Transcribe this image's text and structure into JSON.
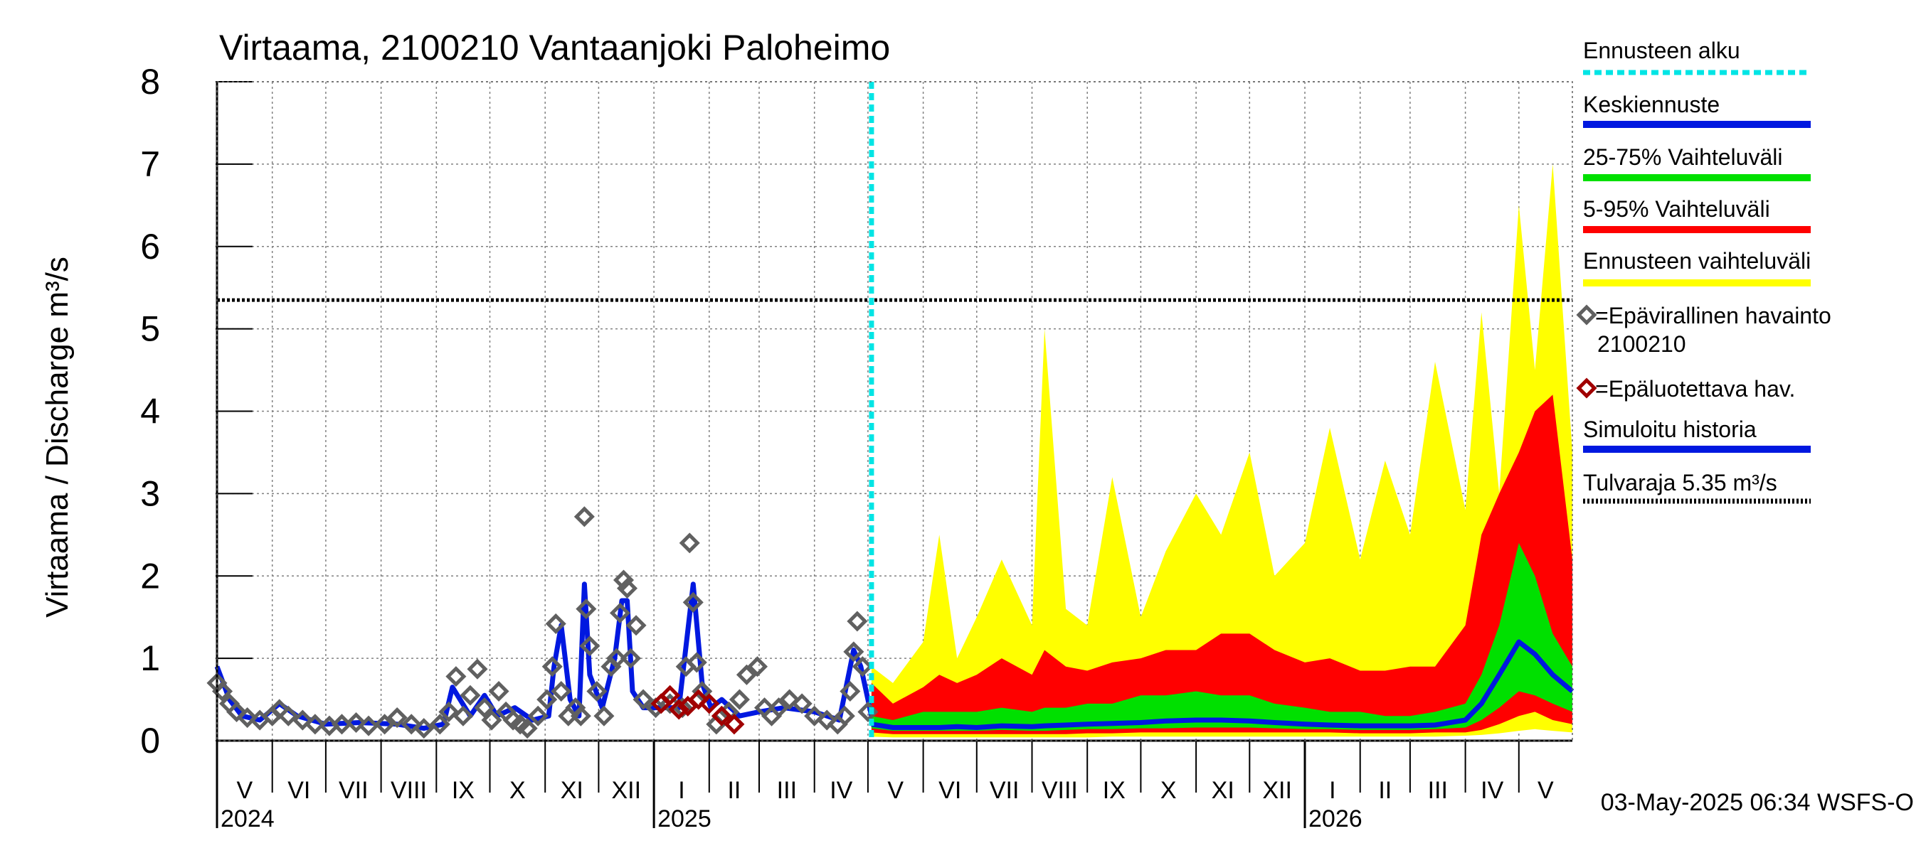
{
  "chart_data": {
    "type": "area",
    "title": "Virtaama, 2100210 Vantaanjoki Paloheimo",
    "ylabel": "Virtaama / Discharge     m³/s",
    "ylim": [
      0,
      8
    ],
    "yticks": [
      "0",
      "1",
      "2",
      "3",
      "4",
      "5",
      "6",
      "7",
      "8"
    ],
    "x_start": "2024-05-01",
    "x_end": "2026-05-31",
    "forecast_start": "2025-05-03",
    "month_labels": [
      {
        "label": "V",
        "month": "2024-05"
      },
      {
        "label": "VI",
        "month": "2024-06"
      },
      {
        "label": "VII",
        "month": "2024-07"
      },
      {
        "label": "VIII",
        "month": "2024-08"
      },
      {
        "label": "IX",
        "month": "2024-09"
      },
      {
        "label": "X",
        "month": "2024-10"
      },
      {
        "label": "XI",
        "month": "2024-11"
      },
      {
        "label": "XII",
        "month": "2024-12"
      },
      {
        "label": "I",
        "month": "2025-01"
      },
      {
        "label": "II",
        "month": "2025-02"
      },
      {
        "label": "III",
        "month": "2025-03"
      },
      {
        "label": "IV",
        "month": "2025-04"
      },
      {
        "label": "V",
        "month": "2025-05"
      },
      {
        "label": "VI",
        "month": "2025-06"
      },
      {
        "label": "VII",
        "month": "2025-07"
      },
      {
        "label": "VIII",
        "month": "2025-08"
      },
      {
        "label": "IX",
        "month": "2025-09"
      },
      {
        "label": "X",
        "month": "2025-10"
      },
      {
        "label": "XI",
        "month": "2025-11"
      },
      {
        "label": "XII",
        "month": "2025-12"
      },
      {
        "label": "I",
        "month": "2026-01"
      },
      {
        "label": "II",
        "month": "2026-02"
      },
      {
        "label": "III",
        "month": "2026-03"
      },
      {
        "label": "IV",
        "month": "2026-04"
      },
      {
        "label": "V",
        "month": "2026-05"
      }
    ],
    "year_labels": [
      {
        "label": "2024",
        "month": "2024-05"
      },
      {
        "label": "2025",
        "month": "2025-01"
      },
      {
        "label": "2026",
        "month": "2026-01"
      }
    ],
    "flood_limit": 5.35,
    "footer": "03-May-2025 06:34 WSFS-O",
    "legend": [
      {
        "label": "Ennusteen alku",
        "style": "dotted",
        "color": "#00e5e5"
      },
      {
        "label": "Keskiennuste",
        "style": "line",
        "color": "#0018e0"
      },
      {
        "label": "25-75% Vaihteluväli",
        "style": "line",
        "color": "#00e000"
      },
      {
        "label": "5-95% Vaihteluväli",
        "style": "line",
        "color": "#ff0000"
      },
      {
        "label": "Ennusteen vaihteluväli",
        "style": "line",
        "color": "#ffff00"
      },
      {
        "label": "=Epävirallinen havainto",
        "sub": "2100210",
        "style": "marker",
        "color": "#606060"
      },
      {
        "label": "=Epäluotettava hav.",
        "style": "marker",
        "color": "#a00000"
      },
      {
        "label": "Simuloitu historia",
        "style": "line",
        "color": "#0018e0"
      },
      {
        "label": "Tulvaraja 5.35 m³/s",
        "style": "dotted",
        "color": "#000000"
      }
    ],
    "colors": {
      "forecast_range": "#ffff00",
      "p5_95": "#ff0000",
      "p25_75": "#00e000",
      "median": "#0018e0",
      "simulated": "#0018e0",
      "observed": "#606060",
      "unreliable": "#a00000",
      "forecast_start": "#00e5e5",
      "flood_limit": "#000000"
    },
    "series": [
      {
        "name": "Simuloitu historia",
        "x": [
          "2024-05-01",
          "2024-05-08",
          "2024-05-15",
          "2024-05-25",
          "2024-06-05",
          "2024-06-15",
          "2024-07-01",
          "2024-07-20",
          "2024-08-10",
          "2024-08-25",
          "2024-09-05",
          "2024-09-10",
          "2024-09-20",
          "2024-09-28",
          "2024-10-05",
          "2024-10-15",
          "2024-10-25",
          "2024-11-03",
          "2024-11-06",
          "2024-11-10",
          "2024-11-15",
          "2024-11-20",
          "2024-11-23",
          "2024-11-26",
          "2024-12-03",
          "2024-12-10",
          "2024-12-14",
          "2024-12-17",
          "2024-12-20",
          "2024-12-26",
          "2025-01-05",
          "2025-01-15",
          "2025-01-23",
          "2025-01-28",
          "2025-02-02",
          "2025-02-08",
          "2025-02-18",
          "2025-03-01",
          "2025-03-15",
          "2025-04-01",
          "2025-04-15",
          "2025-04-23",
          "2025-04-27",
          "2025-05-03"
        ],
        "y": [
          0.9,
          0.5,
          0.3,
          0.25,
          0.45,
          0.3,
          0.2,
          0.22,
          0.2,
          0.15,
          0.2,
          0.65,
          0.3,
          0.55,
          0.3,
          0.4,
          0.25,
          0.3,
          0.9,
          1.4,
          0.5,
          0.3,
          1.9,
          0.8,
          0.4,
          1.0,
          1.7,
          1.7,
          0.6,
          0.4,
          0.4,
          0.4,
          1.9,
          0.7,
          0.4,
          0.5,
          0.3,
          0.35,
          0.4,
          0.35,
          0.25,
          1.1,
          0.9,
          0.3
        ]
      },
      {
        "name": "Epävirallinen havainto",
        "x": [
          "2024-05-01",
          "2024-05-04",
          "2024-05-08",
          "2024-05-12",
          "2024-05-18",
          "2024-05-25",
          "2024-06-01",
          "2024-06-05",
          "2024-06-10",
          "2024-06-18",
          "2024-06-25",
          "2024-07-03",
          "2024-07-10",
          "2024-07-18",
          "2024-07-25",
          "2024-08-03",
          "2024-08-10",
          "2024-08-18",
          "2024-08-25",
          "2024-09-03",
          "2024-09-08",
          "2024-09-12",
          "2024-09-16",
          "2024-09-20",
          "2024-09-24",
          "2024-09-28",
          "2024-10-02",
          "2024-10-06",
          "2024-10-10",
          "2024-10-14",
          "2024-10-18",
          "2024-10-22",
          "2024-10-28",
          "2024-11-02",
          "2024-11-05",
          "2024-11-07",
          "2024-11-10",
          "2024-11-14",
          "2024-11-18",
          "2024-11-21",
          "2024-11-23",
          "2024-11-24",
          "2024-11-26",
          "2024-11-30",
          "2024-12-04",
          "2024-12-08",
          "2024-12-11",
          "2024-12-13",
          "2024-12-15",
          "2024-12-17",
          "2024-12-19",
          "2024-12-22",
          "2024-12-26",
          "2025-01-02",
          "2025-01-10",
          "2025-01-17",
          "2025-01-19",
          "2025-01-21",
          "2025-01-23",
          "2025-01-25",
          "2025-01-28",
          "2025-02-05",
          "2025-02-12",
          "2025-02-18",
          "2025-02-22",
          "2025-02-28",
          "2025-03-04",
          "2025-03-08",
          "2025-03-12",
          "2025-03-18",
          "2025-03-25",
          "2025-04-01",
          "2025-04-08",
          "2025-04-14",
          "2025-04-18",
          "2025-04-21",
          "2025-04-23",
          "2025-04-25",
          "2025-04-28",
          "2025-05-01"
        ],
        "y": [
          0.7,
          0.6,
          0.45,
          0.35,
          0.28,
          0.25,
          0.3,
          0.38,
          0.3,
          0.25,
          0.2,
          0.18,
          0.2,
          0.22,
          0.18,
          0.2,
          0.28,
          0.2,
          0.15,
          0.2,
          0.35,
          0.78,
          0.3,
          0.55,
          0.87,
          0.4,
          0.25,
          0.6,
          0.35,
          0.25,
          0.2,
          0.15,
          0.3,
          0.5,
          0.9,
          1.42,
          0.6,
          0.3,
          0.4,
          0.3,
          2.72,
          1.6,
          1.15,
          0.6,
          0.3,
          0.9,
          1.0,
          1.55,
          1.95,
          1.85,
          1.0,
          1.4,
          0.5,
          0.4,
          0.45,
          0.4,
          0.9,
          2.4,
          1.68,
          0.95,
          0.6,
          0.2,
          0.35,
          0.5,
          0.8,
          0.9,
          0.4,
          0.3,
          0.4,
          0.5,
          0.45,
          0.3,
          0.25,
          0.2,
          0.3,
          0.6,
          1.08,
          1.45,
          0.9,
          0.35
        ]
      },
      {
        "name": "Epäluotettava hav.",
        "x": [
          "2025-01-05",
          "2025-01-10",
          "2025-01-15",
          "2025-01-20",
          "2025-01-26",
          "2025-02-01",
          "2025-02-08",
          "2025-02-15"
        ],
        "y": [
          0.45,
          0.55,
          0.38,
          0.42,
          0.5,
          0.45,
          0.3,
          0.2
        ]
      }
    ],
    "forecast": {
      "x": [
        "2025-05-03",
        "2025-05-15",
        "2025-06-01",
        "2025-06-10",
        "2025-06-20",
        "2025-07-01",
        "2025-07-15",
        "2025-08-01",
        "2025-08-08",
        "2025-08-20",
        "2025-09-01",
        "2025-09-15",
        "2025-10-01",
        "2025-10-15",
        "2025-11-01",
        "2025-11-15",
        "2025-12-01",
        "2025-12-15",
        "2026-01-01",
        "2026-01-15",
        "2026-02-01",
        "2026-02-15",
        "2026-03-01",
        "2026-03-15",
        "2026-04-01",
        "2026-04-10",
        "2026-04-20",
        "2026-05-01",
        "2026-05-10",
        "2026-05-20",
        "2026-05-31"
      ],
      "max": [
        0.9,
        0.7,
        1.2,
        2.5,
        1.0,
        1.5,
        2.2,
        1.4,
        5.0,
        1.6,
        1.4,
        3.2,
        1.5,
        2.3,
        3.0,
        2.5,
        3.5,
        2.0,
        2.4,
        3.8,
        2.2,
        3.4,
        2.5,
        4.6,
        2.8,
        5.2,
        3.0,
        6.5,
        4.5,
        7.0,
        3.5
      ],
      "p95": [
        0.7,
        0.45,
        0.65,
        0.8,
        0.7,
        0.8,
        1.0,
        0.8,
        1.1,
        0.9,
        0.85,
        0.95,
        1.0,
        1.1,
        1.1,
        1.3,
        1.3,
        1.1,
        0.95,
        1.0,
        0.85,
        0.85,
        0.9,
        0.9,
        1.4,
        2.5,
        3.0,
        3.5,
        4.0,
        4.2,
        2.2
      ],
      "p75": [
        0.3,
        0.25,
        0.35,
        0.35,
        0.35,
        0.35,
        0.4,
        0.35,
        0.4,
        0.4,
        0.45,
        0.45,
        0.55,
        0.55,
        0.6,
        0.55,
        0.55,
        0.45,
        0.4,
        0.35,
        0.35,
        0.3,
        0.3,
        0.35,
        0.45,
        0.8,
        1.4,
        2.4,
        2.0,
        1.3,
        0.9
      ],
      "p50": [
        0.2,
        0.16,
        0.16,
        0.16,
        0.17,
        0.16,
        0.18,
        0.17,
        0.18,
        0.19,
        0.2,
        0.21,
        0.22,
        0.24,
        0.25,
        0.25,
        0.24,
        0.22,
        0.2,
        0.19,
        0.18,
        0.18,
        0.18,
        0.19,
        0.25,
        0.45,
        0.8,
        1.2,
        1.05,
        0.8,
        0.6
      ],
      "p25": [
        0.15,
        0.12,
        0.12,
        0.12,
        0.12,
        0.12,
        0.13,
        0.12,
        0.12,
        0.13,
        0.14,
        0.14,
        0.15,
        0.15,
        0.16,
        0.16,
        0.16,
        0.15,
        0.14,
        0.14,
        0.13,
        0.13,
        0.13,
        0.14,
        0.16,
        0.25,
        0.4,
        0.6,
        0.55,
        0.45,
        0.35
      ],
      "p5": [
        0.1,
        0.08,
        0.08,
        0.08,
        0.08,
        0.08,
        0.08,
        0.08,
        0.08,
        0.08,
        0.09,
        0.09,
        0.1,
        0.1,
        0.1,
        0.1,
        0.1,
        0.1,
        0.1,
        0.1,
        0.09,
        0.09,
        0.09,
        0.1,
        0.1,
        0.13,
        0.2,
        0.3,
        0.35,
        0.25,
        0.2
      ],
      "min": [
        0.05,
        0.04,
        0.04,
        0.04,
        0.04,
        0.04,
        0.04,
        0.04,
        0.04,
        0.04,
        0.04,
        0.05,
        0.05,
        0.05,
        0.05,
        0.05,
        0.05,
        0.05,
        0.05,
        0.05,
        0.05,
        0.05,
        0.05,
        0.05,
        0.06,
        0.07,
        0.09,
        0.12,
        0.14,
        0.12,
        0.1
      ]
    }
  }
}
